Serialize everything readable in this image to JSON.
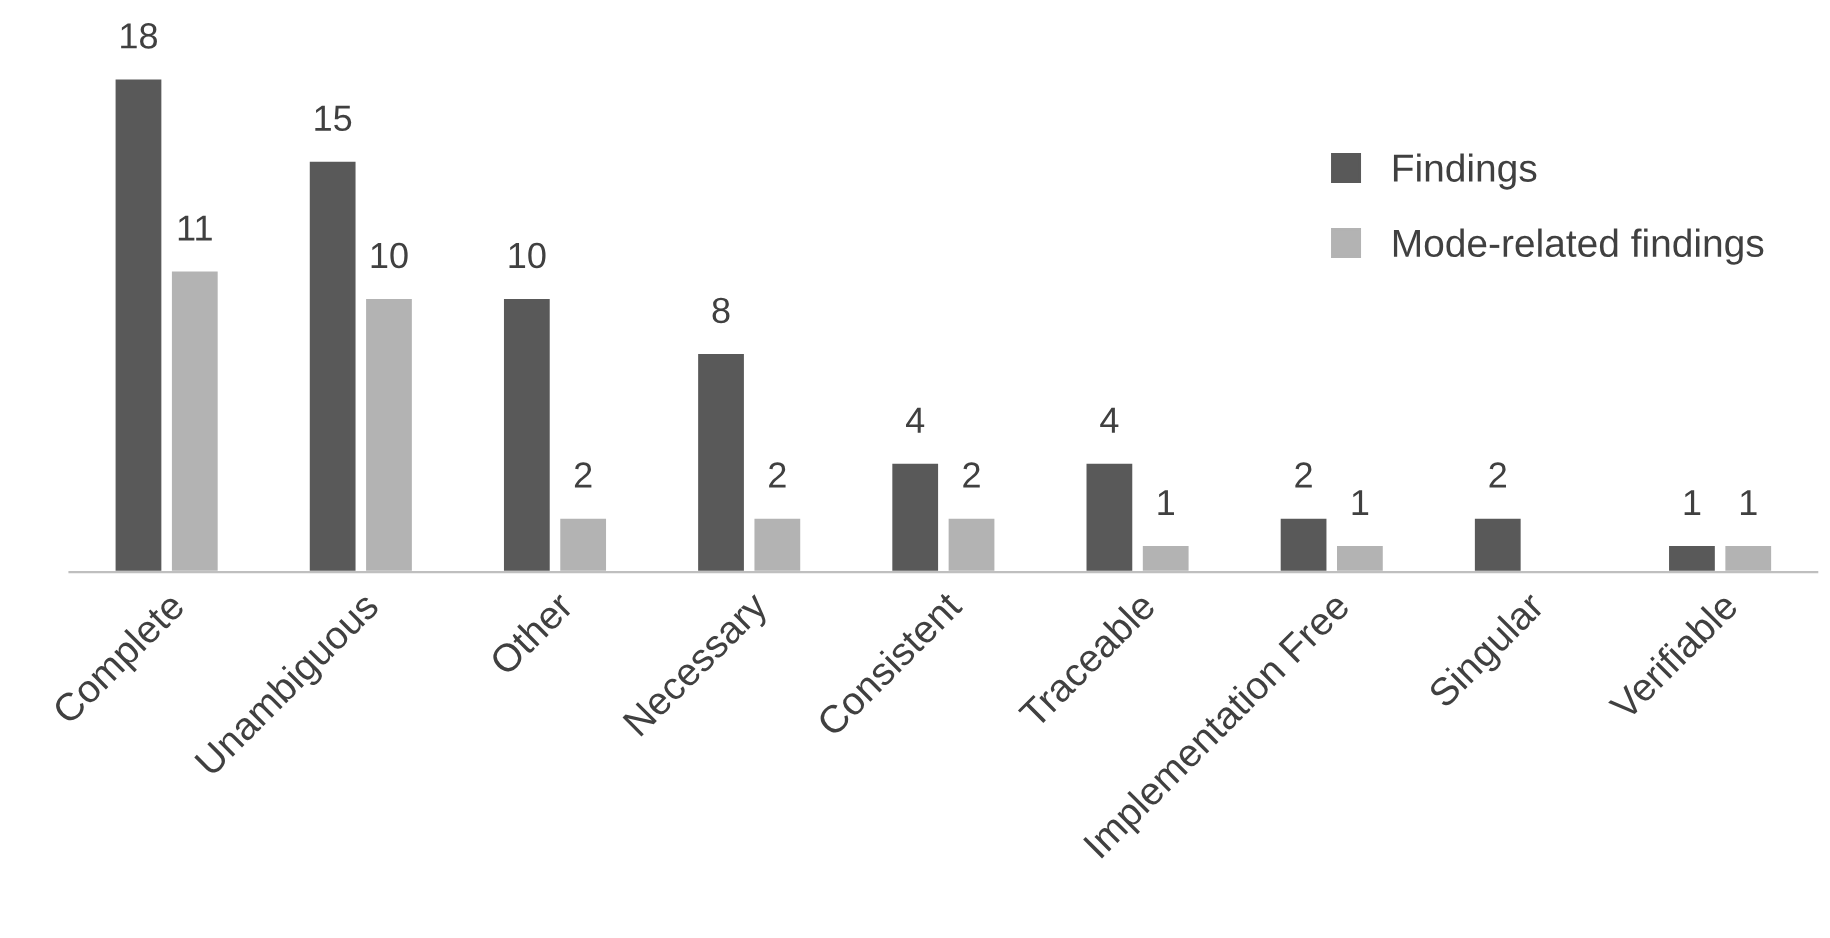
{
  "chart_data": {
    "type": "bar",
    "categories": [
      "Complete",
      "Unambiguous",
      "Other",
      "Necessary",
      "Consistent",
      "Traceable",
      "Implementation Free",
      "Singular",
      "Verifiable"
    ],
    "series": [
      {
        "name": "Findings",
        "color": "#595959",
        "values": [
          18,
          15,
          10,
          8,
          4,
          4,
          2,
          2,
          1
        ]
      },
      {
        "name": "Mode-related findings",
        "color": "#b3b3b3",
        "values": [
          11,
          10,
          2,
          2,
          2,
          1,
          1,
          null,
          1
        ]
      }
    ],
    "data_labels": true,
    "legend": "top right",
    "grid": false
  }
}
